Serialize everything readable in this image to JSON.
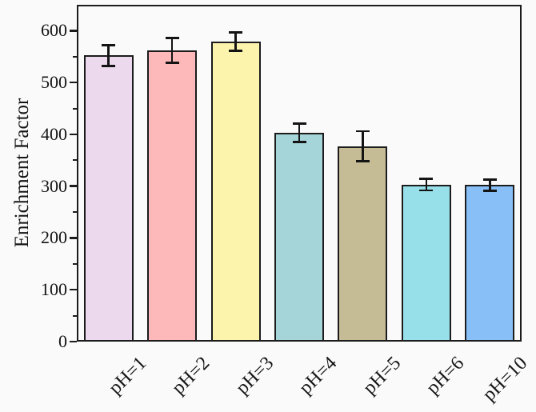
{
  "chart_data": {
    "type": "bar",
    "title": "",
    "xlabel": "",
    "ylabel": "Enrichment Factor",
    "categories": [
      "pH=1",
      "pH=2",
      "pH=3",
      "pH=4",
      "pH=5",
      "pH=6",
      "pH=10"
    ],
    "values": [
      552,
      562,
      579,
      403,
      377,
      303,
      302
    ],
    "error_bars": [
      20,
      24,
      18,
      18,
      29,
      11,
      11
    ],
    "bar_colors": [
      "#ecd9ee",
      "#fdb9ba",
      "#fcf4ad",
      "#a5d5d8",
      "#c5bb95",
      "#97e0ea",
      "#89bff7"
    ],
    "ylim": [
      0,
      650
    ],
    "yticks": [
      0,
      100,
      200,
      300,
      400,
      500,
      600
    ],
    "minor_yticks": [
      50,
      150,
      250,
      350,
      450,
      550
    ],
    "grid": false,
    "legend": null,
    "colors": {
      "background": "#fafafa",
      "axis": "#1c1c1c",
      "error_bar": "#141414",
      "text": "#141414"
    }
  }
}
